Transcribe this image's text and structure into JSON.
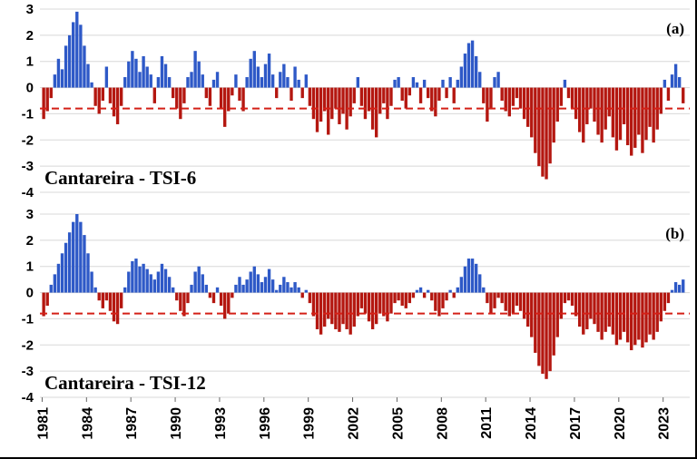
{
  "colors": {
    "positive": "#2e59c7",
    "negative": "#b41710",
    "threshold": "#d42017",
    "grid": "#d8d8d8",
    "tick": "#666666",
    "text": "#000000"
  },
  "x_axis": {
    "tick_years": [
      1981,
      1984,
      1987,
      1990,
      1993,
      1996,
      1999,
      2002,
      2005,
      2008,
      2011,
      2014,
      2017,
      2020,
      2023
    ],
    "tick_labels": [
      "1981",
      "1984",
      "1987",
      "1990",
      "1993",
      "1996",
      "1999",
      "2002",
      "2005",
      "2008",
      "2011",
      "2014",
      "2017",
      "2020",
      "2023"
    ]
  },
  "chart_data": [
    {
      "type": "bar",
      "panel": "a",
      "panel_label": "(a)",
      "title": "Cantareira - TSI-6",
      "xlabel": "",
      "ylabel": "",
      "ylim": [
        -4,
        3
      ],
      "yticks": [
        3,
        2,
        1,
        0,
        -1,
        -2,
        -3,
        -4
      ],
      "grid": true,
      "threshold_line": -0.8,
      "x_start": 1981.0,
      "x_step": 0.25,
      "values": [
        -1.2,
        -0.9,
        -0.4,
        0.5,
        1.1,
        0.7,
        1.6,
        2.0,
        2.5,
        2.9,
        2.4,
        1.6,
        0.9,
        0.2,
        -0.7,
        -1.0,
        -0.5,
        0.8,
        -0.6,
        -1.1,
        -1.4,
        -0.7,
        0.4,
        1.0,
        1.4,
        1.1,
        0.6,
        1.2,
        0.8,
        0.5,
        -0.6,
        0.4,
        1.2,
        0.9,
        0.4,
        -0.4,
        -0.8,
        -1.2,
        -0.6,
        0.4,
        0.6,
        1.4,
        1.0,
        0.5,
        -0.4,
        -0.7,
        0.3,
        0.6,
        -0.8,
        -1.5,
        -0.9,
        -0.3,
        0.5,
        -0.5,
        -0.9,
        0.4,
        1.1,
        1.4,
        0.8,
        0.4,
        0.9,
        1.3,
        0.5,
        -0.4,
        0.6,
        0.9,
        0.4,
        -0.5,
        0.8,
        0.3,
        -0.4,
        0.5,
        -0.7,
        -1.2,
        -1.7,
        -1.3,
        -0.9,
        -1.8,
        -1.2,
        -0.8,
        -1.4,
        -1.0,
        -1.6,
        -1.1,
        -0.6,
        0.4,
        -0.7,
        -1.2,
        -0.9,
        -1.6,
        -1.9,
        -1.0,
        -0.6,
        -1.2,
        -0.7,
        0.3,
        0.4,
        -0.5,
        -0.8,
        -0.3,
        0.4,
        0.2,
        -0.6,
        0.3,
        -0.4,
        -0.9,
        -1.1,
        -0.5,
        0.3,
        -0.4,
        0.4,
        -0.6,
        0.3,
        0.8,
        1.3,
        1.7,
        1.8,
        1.2,
        0.6,
        -0.6,
        -1.3,
        -0.8,
        0.4,
        0.6,
        -0.5,
        -0.9,
        -1.1,
        -0.7,
        -0.4,
        -0.8,
        -1.2,
        -1.5,
        -1.9,
        -2.5,
        -3.0,
        -3.4,
        -3.5,
        -2.9,
        -2.1,
        -1.3,
        -0.7,
        0.3,
        -0.4,
        -0.8,
        -1.2,
        -1.7,
        -2.1,
        -1.4,
        -0.8,
        -1.3,
        -1.8,
        -2.1,
        -1.6,
        -1.1,
        -1.9,
        -2.4,
        -2.0,
        -1.4,
        -2.2,
        -2.6,
        -2.3,
        -1.8,
        -2.5,
        -2.0,
        -1.5,
        -2.1,
        -1.6,
        -1.0,
        0.3,
        -0.5,
        0.5,
        0.9,
        0.4,
        -0.6
      ]
    },
    {
      "type": "bar",
      "panel": "b",
      "panel_label": "(b)",
      "title": "Cantareira - TSI-12",
      "xlabel": "",
      "ylabel": "",
      "ylim": [
        -4,
        3
      ],
      "yticks": [
        3,
        2,
        1,
        0,
        -1,
        -2,
        -3,
        -4
      ],
      "grid": true,
      "threshold_line": -0.8,
      "x_start": 1981.0,
      "x_step": 0.25,
      "values": [
        -0.9,
        -0.5,
        0.3,
        0.7,
        1.1,
        1.5,
        1.9,
        2.3,
        2.7,
        3.0,
        2.7,
        2.2,
        1.5,
        0.8,
        0.2,
        -0.3,
        -0.6,
        -0.3,
        -0.7,
        -1.1,
        -1.2,
        -0.6,
        0.2,
        0.8,
        1.2,
        1.3,
        1.0,
        1.1,
        0.9,
        0.7,
        0.5,
        0.8,
        1.1,
        0.9,
        0.6,
        0.2,
        -0.3,
        -0.7,
        -0.9,
        -0.4,
        0.3,
        0.8,
        1.0,
        0.7,
        0.3,
        -0.2,
        -0.4,
        0.2,
        -0.5,
        -1.0,
        -0.8,
        -0.2,
        0.3,
        0.6,
        0.3,
        0.5,
        0.8,
        1.0,
        0.7,
        0.4,
        0.6,
        0.9,
        0.5,
        0.1,
        0.3,
        0.6,
        0.4,
        0.2,
        0.4,
        0.2,
        -0.2,
        0.1,
        -0.4,
        -0.9,
        -1.4,
        -1.6,
        -1.3,
        -1.0,
        -1.2,
        -1.4,
        -1.5,
        -1.2,
        -1.4,
        -1.6,
        -1.3,
        -0.9,
        -0.6,
        -0.8,
        -1.1,
        -1.4,
        -1.2,
        -0.8,
        -0.9,
        -1.1,
        -0.8,
        -0.4,
        -0.3,
        -0.5,
        -0.6,
        -0.4,
        -0.2,
        0.1,
        0.2,
        -0.2,
        0.1,
        -0.3,
        -0.7,
        -0.9,
        -0.6,
        -0.3,
        0.1,
        -0.2,
        0.2,
        0.6,
        1.0,
        1.3,
        1.3,
        1.1,
        0.7,
        0.2,
        -0.4,
        -0.8,
        -0.6,
        -0.2,
        -0.4,
        -0.7,
        -0.9,
        -0.8,
        -0.5,
        -0.7,
        -1.0,
        -1.3,
        -1.7,
        -2.3,
        -2.8,
        -3.1,
        -3.3,
        -3.0,
        -2.4,
        -1.7,
        -1.0,
        -0.4,
        -0.3,
        -0.5,
        -0.9,
        -1.3,
        -1.6,
        -1.4,
        -1.0,
        -1.2,
        -1.5,
        -1.8,
        -1.5,
        -1.3,
        -1.6,
        -2.0,
        -1.8,
        -1.5,
        -1.9,
        -2.2,
        -2.0,
        -1.8,
        -2.1,
        -1.9,
        -1.6,
        -1.8,
        -1.5,
        -1.1,
        -0.7,
        -0.4,
        0.1,
        0.4,
        0.3,
        0.5
      ]
    }
  ]
}
